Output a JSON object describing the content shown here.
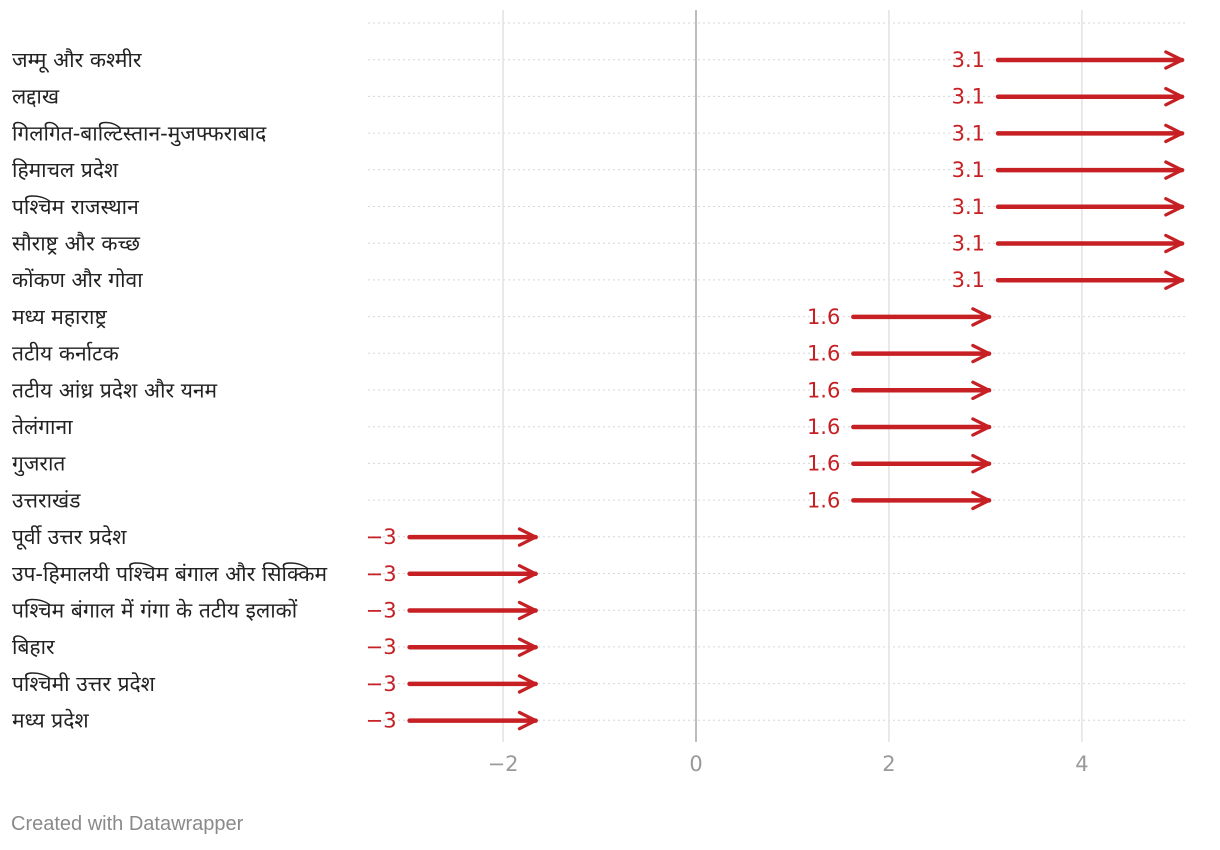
{
  "chart_data": {
    "type": "arrow",
    "title": "",
    "xlabel": "",
    "ylabel": "",
    "xlim": [
      -3.4,
      5.1
    ],
    "xticks": [
      -2,
      0,
      2,
      4
    ],
    "xtick_labels": [
      "−2",
      "0",
      "2",
      "4"
    ],
    "grid": true,
    "rows": [
      {
        "label": "जम्मू और कश्मीर",
        "start": 3.1,
        "end": 5.1,
        "value_label": "3.1"
      },
      {
        "label": "लद्दाख",
        "start": 3.1,
        "end": 5.1,
        "value_label": "3.1"
      },
      {
        "label": "गिलगित-बाल्टिस्तान-मुजफ्फराबाद",
        "start": 3.1,
        "end": 5.1,
        "value_label": "3.1"
      },
      {
        "label": "हिमाचल प्रदेश",
        "start": 3.1,
        "end": 5.1,
        "value_label": "3.1"
      },
      {
        "label": "पश्चिम राजस्थान",
        "start": 3.1,
        "end": 5.1,
        "value_label": "3.1"
      },
      {
        "label": "सौराष्ट्र और कच्छ",
        "start": 3.1,
        "end": 5.1,
        "value_label": "3.1"
      },
      {
        "label": "कोंकण और गोवा",
        "start": 3.1,
        "end": 5.1,
        "value_label": "3.1"
      },
      {
        "label": "मध्य महाराष्ट्र",
        "start": 1.6,
        "end": 3.1,
        "value_label": "1.6"
      },
      {
        "label": "तटीय कर्नाटक",
        "start": 1.6,
        "end": 3.1,
        "value_label": "1.6"
      },
      {
        "label": "तटीय आंध्र प्रदेश और यनम",
        "start": 1.6,
        "end": 3.1,
        "value_label": "1.6"
      },
      {
        "label": "तेलंगाना",
        "start": 1.6,
        "end": 3.1,
        "value_label": "1.6"
      },
      {
        "label": "गुजरात",
        "start": 1.6,
        "end": 3.1,
        "value_label": "1.6"
      },
      {
        "label": "उत्तराखंड",
        "start": 1.6,
        "end": 3.1,
        "value_label": "1.6"
      },
      {
        "label": "पूर्वी उत्तर प्रदेश",
        "start": -3,
        "end": -1.6,
        "value_label": "−3"
      },
      {
        "label": "उप-हिमालयी पश्चिम बंगाल और सिक्किम",
        "start": -3,
        "end": -1.6,
        "value_label": "−3"
      },
      {
        "label": "पश्चिम बंगाल में गंगा के तटीय इलाकों",
        "start": -3,
        "end": -1.6,
        "value_label": "−3"
      },
      {
        "label": "बिहार",
        "start": -3,
        "end": -1.6,
        "value_label": "−3"
      },
      {
        "label": "पश्चिमी उत्तर प्रदेश",
        "start": -3,
        "end": -1.6,
        "value_label": "−3"
      },
      {
        "label": "मध्य प्रदेश",
        "start": -3,
        "end": -1.6,
        "value_label": "−3"
      }
    ],
    "colors": {
      "arrow": "#c62024",
      "grid": "#d6d6d6",
      "zero_line": "#bdbdbd",
      "tick_text": "#9a9a9a"
    }
  },
  "footer": {
    "credit": "Created with Datawrapper"
  }
}
